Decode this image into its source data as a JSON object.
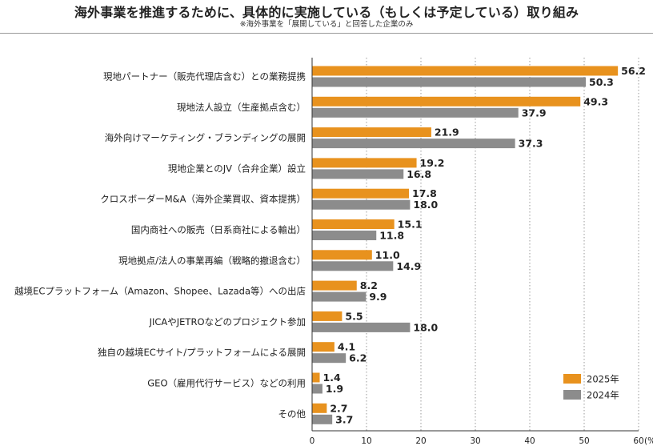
{
  "header": {
    "title": "海外事業を推進するために、具体的に実施している（もしくは予定している）取り組み",
    "note": "※海外事業を「展開している」と回答した企業のみ"
  },
  "colors": {
    "series_2025": "#E8921E",
    "series_2024": "#8C8C8C"
  },
  "chart_data": {
    "type": "bar",
    "orientation": "horizontal",
    "categories": [
      "現地パートナー（販売代理店含む）との業務提携",
      "現地法人設立（生産拠点含む）",
      "海外向けマーケティング・ブランディングの展開",
      "現地企業とのJV（合弁企業）設立",
      "クロスボーダーM&A（海外企業買収、資本提携）",
      "国内商社への販売（日系商社による輸出）",
      "現地拠点/法人の事業再編（戦略的撤退含む）",
      "越境ECプラットフォーム（Amazon、Shopee、Lazada等）への出店",
      "JICAやJETROなどのプロジェクト参加",
      "独自の越境ECサイト/プラットフォームによる展開",
      "GEO（雇用代行サービス）などの利用",
      "その他"
    ],
    "series": [
      {
        "name": "2025年",
        "values": [
          56.2,
          49.3,
          21.9,
          19.2,
          17.8,
          15.1,
          11.0,
          8.2,
          5.5,
          4.1,
          1.4,
          2.7
        ]
      },
      {
        "name": "2024年",
        "values": [
          50.3,
          37.9,
          37.3,
          16.8,
          18.0,
          11.8,
          14.9,
          9.9,
          18.0,
          6.2,
          1.9,
          3.7
        ]
      }
    ],
    "xlim": [
      0,
      60
    ],
    "xticks": [
      0,
      10,
      20,
      30,
      40,
      50,
      60
    ],
    "xunit": "(%)",
    "grid": "vertical dotted",
    "legend": "bottom-right"
  }
}
